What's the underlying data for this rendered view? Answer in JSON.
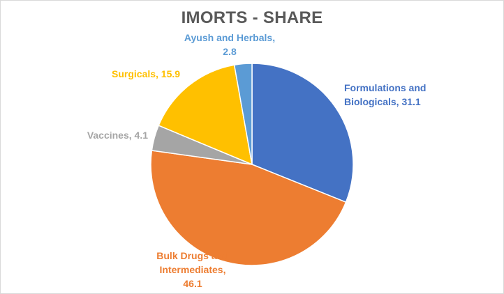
{
  "chart_data": {
    "type": "pie",
    "title": "IMORTS - SHARE",
    "start_angle_deg": 0,
    "direction": "clockwise",
    "slices": [
      {
        "name": "Formulations and Biologicals",
        "value": 31.1,
        "color": "#4472C4",
        "label_lines": [
          "Formulations and",
          "Biologicals, 31.1"
        ],
        "label_color": "#4472C4"
      },
      {
        "name": "Bulk Drugs and Intermediates",
        "value": 46.1,
        "color": "#ED7D31",
        "label_lines": [
          "Bulk Drugs and",
          "Intermediates,",
          "46.1"
        ],
        "label_color": "#ED7D31"
      },
      {
        "name": "Vaccines",
        "value": 4.1,
        "color": "#A5A5A5",
        "label_lines": [
          "Vaccines, 4.1"
        ],
        "label_color": "#A5A5A5"
      },
      {
        "name": "Surgicals",
        "value": 15.9,
        "color": "#FFC000",
        "label_lines": [
          "Surgicals, 15.9"
        ],
        "label_color": "#FFC000"
      },
      {
        "name": "Ayush and Herbals",
        "value": 2.8,
        "color": "#5B9BD5",
        "label_lines": [
          "Ayush and Herbals,",
          "2.8"
        ],
        "label_color": "#5B9BD5"
      }
    ]
  }
}
